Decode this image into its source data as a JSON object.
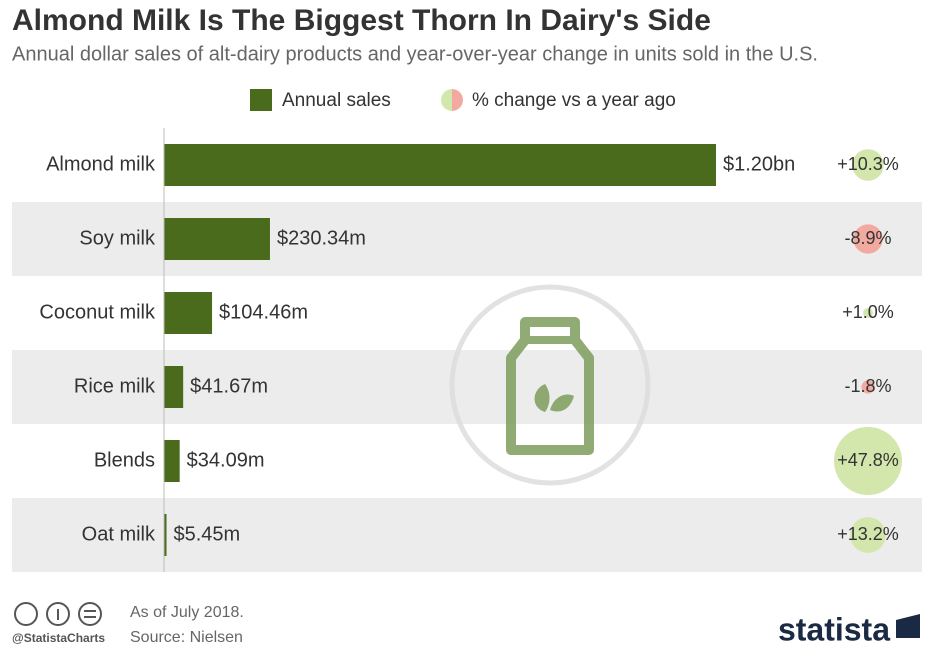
{
  "chart_data": {
    "type": "bar",
    "orientation": "horizontal",
    "title": "Almond Milk Is The Biggest Thorn In Dairy's Side",
    "subtitle": "Annual dollar sales of alt-dairy products and year-over-year change in units sold in the U.S.",
    "categories": [
      "Almond milk",
      "Soy milk",
      "Coconut milk",
      "Rice milk",
      "Blends",
      "Oat milk"
    ],
    "series": [
      {
        "name": "Annual sales",
        "color": "#4a6b1c",
        "values": [
          1200,
          230.34,
          104.46,
          41.67,
          34.09,
          5.45
        ],
        "value_labels": [
          "$1.20bn",
          "$230.34m",
          "$104.46m",
          "$41.67m",
          "$34.09m",
          "$5.45m"
        ]
      },
      {
        "name": "% change vs a year ago",
        "type": "bubble",
        "color": "#d3e6ac",
        "negative_color": "#f2a9a0",
        "values": [
          10.3,
          -8.9,
          1.0,
          -1.8,
          47.8,
          13.2
        ],
        "value_labels": [
          "+10.3%",
          "-8.9%",
          "+1.0%",
          "-1.8%",
          "+47.8%",
          "+13.2%"
        ]
      }
    ],
    "note": "As of July 2018.",
    "source": "Source: Nielsen",
    "credit": "@StatistaCharts",
    "brand": "statista"
  }
}
